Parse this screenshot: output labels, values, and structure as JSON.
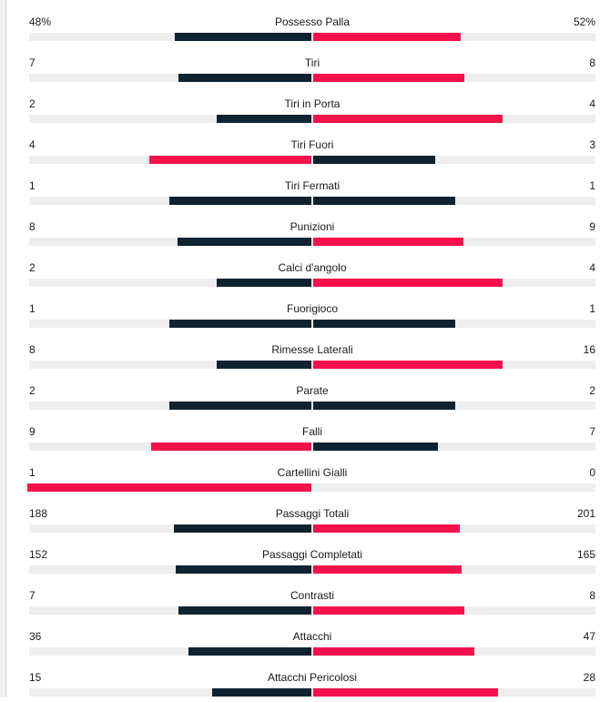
{
  "colors": {
    "dark": "#0f2230",
    "red": "#f5124c",
    "track": "#eeeeee"
  },
  "stats": [
    {
      "label": "Possesso Palla",
      "left": "48%",
      "right": "52%",
      "left_pct": 0.48,
      "right_pct": 0.52
    },
    {
      "label": "Tiri",
      "left": "7",
      "right": "8",
      "left_pct": 0.467,
      "right_pct": 0.533
    },
    {
      "label": "Tiri in Porta",
      "left": "2",
      "right": "4",
      "left_pct": 0.333,
      "right_pct": 0.667
    },
    {
      "label": "Tiri Fuori",
      "left": "4",
      "right": "3",
      "left_pct": 0.571,
      "right_pct": 0.429
    },
    {
      "label": "Tiri Fermati",
      "left": "1",
      "right": "1",
      "left_pct": 0.5,
      "right_pct": 0.5
    },
    {
      "label": "Punizioni",
      "left": "8",
      "right": "9",
      "left_pct": 0.471,
      "right_pct": 0.529
    },
    {
      "label": "Calci d'angolo",
      "left": "2",
      "right": "4",
      "left_pct": 0.333,
      "right_pct": 0.667
    },
    {
      "label": "Fuorigioco",
      "left": "1",
      "right": "1",
      "left_pct": 0.5,
      "right_pct": 0.5
    },
    {
      "label": "Rimesse Laterali",
      "left": "8",
      "right": "16",
      "left_pct": 0.333,
      "right_pct": 0.667
    },
    {
      "label": "Parate",
      "left": "2",
      "right": "2",
      "left_pct": 0.5,
      "right_pct": 0.5
    },
    {
      "label": "Falli",
      "left": "9",
      "right": "7",
      "left_pct": 0.5625,
      "right_pct": 0.4375
    },
    {
      "label": "Cartellini Gialli",
      "left": "1",
      "right": "0",
      "left_pct": 1.0,
      "right_pct": 0.0
    },
    {
      "label": "Passaggi Totali",
      "left": "188",
      "right": "201",
      "left_pct": 0.483,
      "right_pct": 0.517
    },
    {
      "label": "Passaggi Completati",
      "left": "152",
      "right": "165",
      "left_pct": 0.479,
      "right_pct": 0.521
    },
    {
      "label": "Contrasti",
      "left": "7",
      "right": "8",
      "left_pct": 0.467,
      "right_pct": 0.533
    },
    {
      "label": "Attacchi",
      "left": "36",
      "right": "47",
      "left_pct": 0.434,
      "right_pct": 0.566
    },
    {
      "label": "Attacchi Pericolosi",
      "left": "15",
      "right": "28",
      "left_pct": 0.349,
      "right_pct": 0.651
    }
  ]
}
